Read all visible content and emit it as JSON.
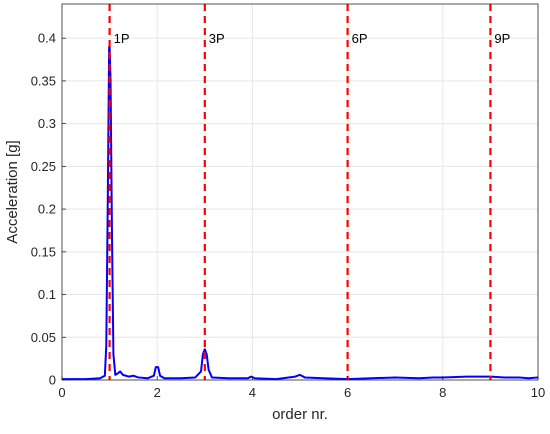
{
  "chart_data": {
    "type": "line",
    "xlabel": "order nr.",
    "ylabel": "Acceleration [g]",
    "xlim": [
      0,
      10
    ],
    "ylim": [
      0,
      0.44
    ],
    "grid": true,
    "xticks": [
      0,
      2,
      4,
      6,
      8,
      10
    ],
    "xtick_labels": [
      "0",
      "2",
      "4",
      "6",
      "8",
      "10"
    ],
    "yticks": [
      0,
      0.05,
      0.1,
      0.15,
      0.2,
      0.25,
      0.3,
      0.35,
      0.4
    ],
    "ytick_labels": [
      "0",
      "0.05",
      "0.1",
      "0.15",
      "0.2",
      "0.25",
      "0.3",
      "0.35",
      "0.4"
    ],
    "series": [
      {
        "color": "#0000ff",
        "points": [
          [
            0,
            0.001
          ],
          [
            0.5,
            0.001
          ],
          [
            0.8,
            0.002
          ],
          [
            0.9,
            0.005
          ],
          [
            0.93,
            0.04
          ],
          [
            0.96,
            0.2
          ],
          [
            0.99,
            0.39
          ],
          [
            1.0,
            0.39
          ],
          [
            1.02,
            0.35
          ],
          [
            1.05,
            0.17
          ],
          [
            1.08,
            0.03
          ],
          [
            1.12,
            0.006
          ],
          [
            1.18,
            0.008
          ],
          [
            1.22,
            0.01
          ],
          [
            1.28,
            0.006
          ],
          [
            1.4,
            0.004
          ],
          [
            1.5,
            0.005
          ],
          [
            1.6,
            0.003
          ],
          [
            1.8,
            0.002
          ],
          [
            1.93,
            0.005
          ],
          [
            1.97,
            0.015
          ],
          [
            2.02,
            0.015
          ],
          [
            2.06,
            0.005
          ],
          [
            2.15,
            0.002
          ],
          [
            2.5,
            0.002
          ],
          [
            2.8,
            0.003
          ],
          [
            2.92,
            0.01
          ],
          [
            2.96,
            0.03
          ],
          [
            3.0,
            0.036
          ],
          [
            3.04,
            0.03
          ],
          [
            3.08,
            0.012
          ],
          [
            3.15,
            0.003
          ],
          [
            3.5,
            0.002
          ],
          [
            3.9,
            0.002
          ],
          [
            3.98,
            0.004
          ],
          [
            4.05,
            0.002
          ],
          [
            4.5,
            0.001
          ],
          [
            4.9,
            0.004
          ],
          [
            5.0,
            0.006
          ],
          [
            5.1,
            0.003
          ],
          [
            5.5,
            0.002
          ],
          [
            6.0,
            0.001
          ],
          [
            6.5,
            0.002
          ],
          [
            7.0,
            0.003
          ],
          [
            7.5,
            0.002
          ],
          [
            7.8,
            0.003
          ],
          [
            8.0,
            0.003
          ],
          [
            8.5,
            0.004
          ],
          [
            8.8,
            0.004
          ],
          [
            9.0,
            0.004
          ],
          [
            9.3,
            0.003
          ],
          [
            9.6,
            0.003
          ],
          [
            9.8,
            0.002
          ],
          [
            10.0,
            0.003
          ]
        ]
      }
    ],
    "vertical_markers": [
      {
        "x": 1,
        "label": "1P",
        "color": "#ff0000"
      },
      {
        "x": 3,
        "label": "3P",
        "color": "#ff0000"
      },
      {
        "x": 6,
        "label": "6P",
        "color": "#ff0000"
      },
      {
        "x": 9,
        "label": "9P",
        "color": "#ff0000"
      }
    ]
  }
}
